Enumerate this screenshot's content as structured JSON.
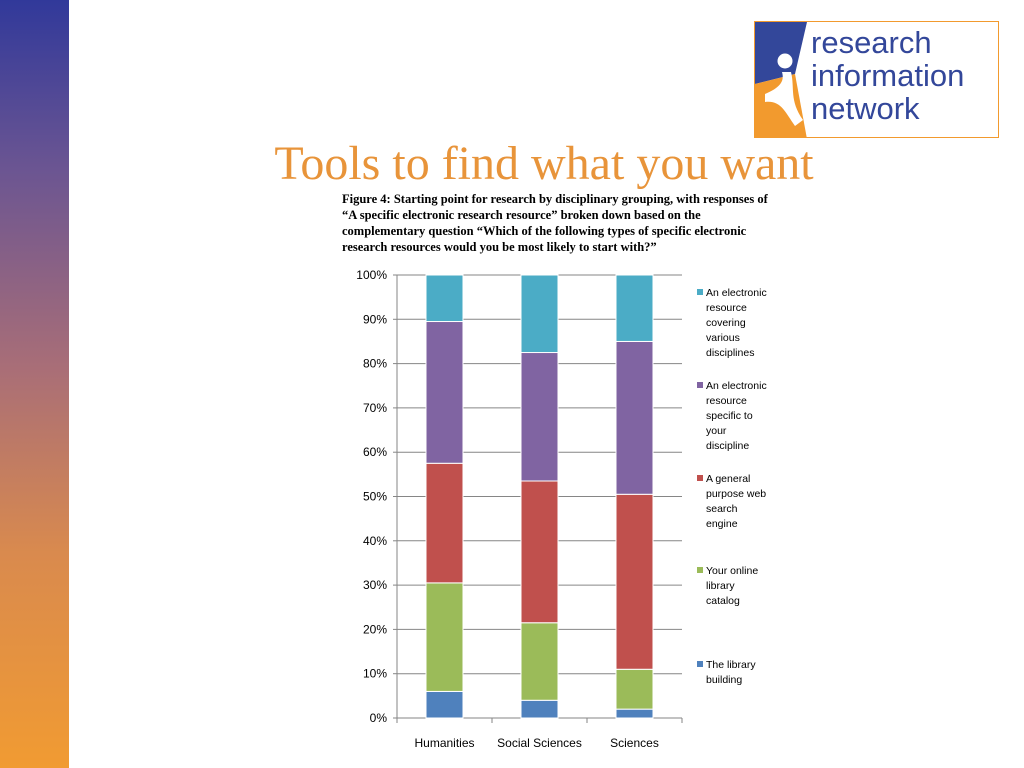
{
  "slide": {
    "title": "Tools to find what you want",
    "caption": "Figure 4: Starting point for research by disciplinary grouping, with responses of “A specific electronic research resource” broken down based on the complementary question “Which of the following types of specific electronic research resources would you be most likely to start with?”"
  },
  "logo": {
    "lines": [
      "research",
      "information",
      "network"
    ],
    "colors": {
      "blue": "#33479a",
      "orange": "#f29a2e"
    }
  },
  "chart_data": {
    "type": "bar",
    "stacked": true,
    "percent": true,
    "categories": [
      "Humanities",
      "Social Sciences",
      "Sciences"
    ],
    "ylim": [
      0,
      100
    ],
    "yticks": [
      "0%",
      "10%",
      "20%",
      "30%",
      "40%",
      "50%",
      "60%",
      "70%",
      "80%",
      "90%",
      "100%"
    ],
    "grid": true,
    "legend_position": "right",
    "series": [
      {
        "name": "The library building",
        "color": "#4f81bd",
        "values": [
          6,
          4,
          2
        ]
      },
      {
        "name": "Your online library catalog",
        "color": "#9bbb59",
        "values": [
          24.5,
          17.5,
          9
        ]
      },
      {
        "name": "A general purpose web search engine",
        "color": "#c0504d",
        "values": [
          27,
          32,
          39.5
        ]
      },
      {
        "name": "An electronic resource specific to your discipline",
        "color": "#8064a2",
        "values": [
          32,
          29,
          34.5
        ]
      },
      {
        "name": "An electronic resource covering various disciplines",
        "color": "#4bacc6",
        "values": [
          10.5,
          17.5,
          15
        ]
      }
    ],
    "legend_lines": [
      [
        "An electronic",
        "resource",
        "covering",
        "various",
        "disciplines"
      ],
      [
        "An electronic",
        "resource",
        "specific to",
        "your",
        "discipline"
      ],
      [
        "A general",
        "purpose web",
        "search",
        "engine"
      ],
      [
        "Your online",
        "library",
        "catalog"
      ],
      [
        "The library",
        "building"
      ]
    ]
  }
}
